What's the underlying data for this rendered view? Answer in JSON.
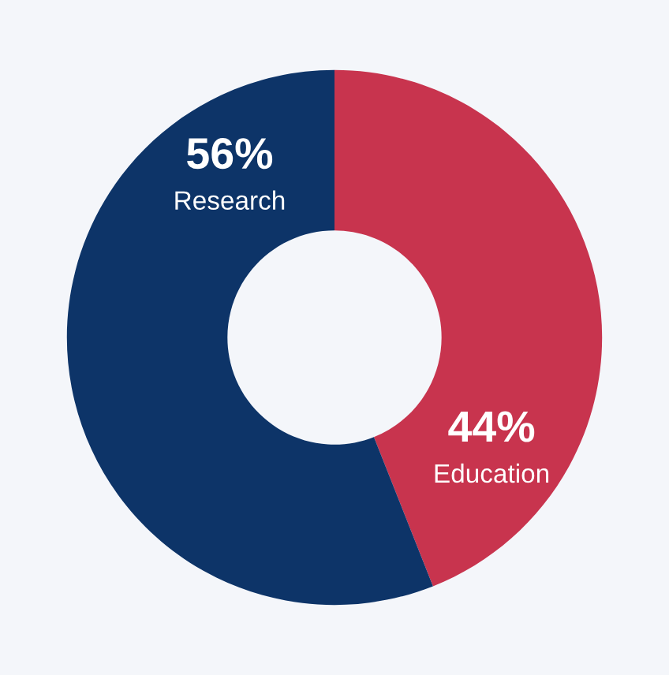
{
  "chart_data": {
    "type": "donut",
    "categories": [
      "Education",
      "Research"
    ],
    "values": [
      44,
      56
    ],
    "colors": [
      "#c8344e",
      "#0d3468"
    ],
    "value_labels": [
      "44%",
      "56%"
    ]
  }
}
